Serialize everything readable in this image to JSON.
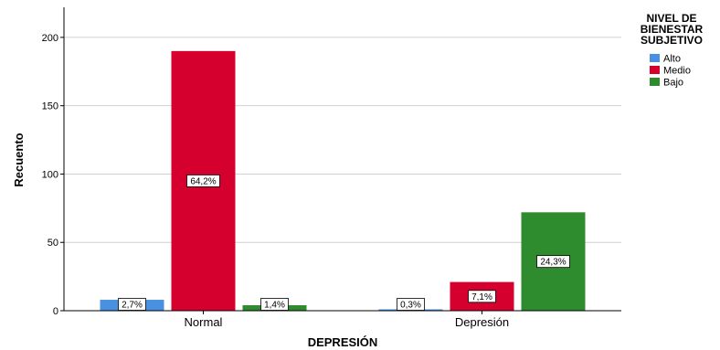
{
  "chart_data": {
    "type": "bar",
    "categories": [
      "Normal",
      "Depresión"
    ],
    "series": [
      {
        "name": "Alto",
        "color": "#4a90e2",
        "values": [
          8,
          1
        ],
        "labels": [
          "2,7%",
          "0,3%"
        ]
      },
      {
        "name": "Medio",
        "color": "#d6002f",
        "values": [
          190,
          21
        ],
        "labels": [
          "64,2%",
          "7,1%"
        ]
      },
      {
        "name": "Bajo",
        "color": "#2e8b2e",
        "values": [
          4,
          72
        ],
        "labels": [
          "1,4%",
          "24,3%"
        ]
      }
    ],
    "xlabel": "DEPRESIÓN",
    "ylabel": "Recuento",
    "ylim": [
      0,
      222
    ],
    "yticks": [
      0,
      50,
      100,
      150,
      200
    ],
    "grid": true,
    "legend": {
      "title_lines": [
        "NIVEL DE",
        "BIENESTAR",
        "SUBJETIVO"
      ],
      "placement": "top-right"
    }
  }
}
